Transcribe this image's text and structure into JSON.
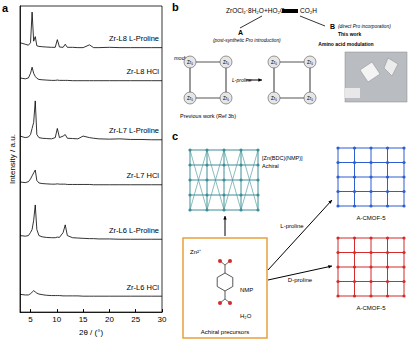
{
  "chart_data": {
    "type": "line",
    "panel": "a",
    "x_label": "2θ / (°)",
    "y_label": "Intensity / a.u.",
    "xlim": [
      3,
      30
    ],
    "xticks": [
      5,
      10,
      15,
      20,
      25,
      30
    ],
    "ylim": [
      0,
      100
    ],
    "yticks": [],
    "tick_labels": "x",
    "grid": false,
    "x": [
      3,
      4,
      4.6,
      5.0,
      5.3,
      5.6,
      5.9,
      6.2,
      6.6,
      7.2,
      8,
      9,
      9.7,
      10.1,
      10.5,
      11.2,
      11.6,
      12,
      13,
      14,
      15,
      16.2,
      17,
      18,
      20,
      22,
      24,
      26,
      28,
      30
    ],
    "series": [
      {
        "name": "Zr-L8 L-Proline",
        "color": "#000000",
        "values": [
          88,
          87.5,
          87.2,
          88,
          98,
          88.5,
          90,
          87,
          86.8,
          86.7,
          86.6,
          86.5,
          86.5,
          89,
          86.6,
          86.5,
          87.5,
          86.5,
          86.5,
          86.4,
          86.4,
          87.3,
          86.4,
          86.4,
          86.5,
          86.4,
          86.4,
          86.4,
          86.4,
          86.4
        ]
      },
      {
        "name": "Zr-L8 HCl",
        "color": "#000000",
        "values": [
          76.5,
          76.2,
          76.5,
          78,
          80,
          78,
          77,
          76.4,
          76,
          75.9,
          75.8,
          75.7,
          75.7,
          75.8,
          75.7,
          75.7,
          75.7,
          75.7,
          75.6,
          75.6,
          75.6,
          75.6,
          75.6,
          75.6,
          75.6,
          75.6,
          75.6,
          75.6,
          75.6,
          75.6
        ]
      },
      {
        "name": "Zr-L7 L-Proline",
        "color": "#000000",
        "values": [
          57.5,
          57,
          57.2,
          58,
          60,
          62,
          69,
          58,
          57,
          56.8,
          56.7,
          56.6,
          57,
          60,
          57,
          57.5,
          58,
          56.8,
          56.7,
          56.6,
          57.5,
          57,
          56.8,
          56.6,
          56.5,
          56.6,
          56.4,
          56.4,
          56.3,
          56.3
        ]
      },
      {
        "name": "Zr-L7 HCl",
        "color": "#000000",
        "values": [
          42.5,
          42.3,
          42.6,
          43.5,
          44.5,
          45.5,
          46.4,
          43,
          42.2,
          42,
          41.9,
          41.8,
          41.8,
          41.9,
          41.8,
          41.8,
          41.8,
          41.7,
          41.7,
          41.7,
          41.7,
          41.7,
          41.6,
          41.6,
          41.6,
          41.6,
          41.6,
          41.6,
          41.6,
          41.6
        ]
      },
      {
        "name": "Zr-L6 L-Proline",
        "color": "#000000",
        "values": [
          25,
          24.8,
          25,
          26,
          27,
          30,
          35,
          27,
          25,
          24.6,
          24.4,
          24.3,
          24.3,
          24.5,
          24.4,
          26,
          28.5,
          25,
          24.3,
          24.2,
          24.1,
          24,
          24,
          23.9,
          23.9,
          23.8,
          23.8,
          23.8,
          23.8,
          23.8
        ]
      },
      {
        "name": "Zr-L6 HCl",
        "color": "#000000",
        "values": [
          5.8,
          5.6,
          5.6,
          6,
          6.5,
          7,
          6.6,
          6.2,
          5.9,
          5.7,
          5.5,
          5.4,
          5.4,
          5.4,
          5.4,
          5.3,
          5.3,
          5.3,
          5.3,
          5.3,
          5.2,
          5.2,
          5.2,
          5.2,
          5.2,
          5.2,
          5.2,
          5.2,
          5.2,
          5.2
        ]
      }
    ]
  },
  "panel_b": {
    "label": "b",
    "reagents": "ZrOCl₂·8H₂O+HO₂C",
    "acid_end": "CO₂H",
    "route_a": {
      "letter": "A",
      "text": "(post-synthetic Pro introduction)"
    },
    "route_b": {
      "letter": "B",
      "text": "(direct Pro incorporation)"
    },
    "this_work": "This work",
    "modulator": "modul",
    "proline": "L-proline",
    "node": "Zr₆",
    "previous": "Previous work (Ref 3b)",
    "modulation": "Amino acid modulation"
  },
  "panel_c": {
    "label": "c",
    "framework": "[Zn(BDC)(NMP)]",
    "framework_note": "Achiral",
    "l_route": "L-proline",
    "d_route": "D-proline",
    "l_product": "A-CMOF-5",
    "d_product": "A-CMOF-5",
    "precursors": "Achiral precursors",
    "metal": "Zn²⁺",
    "solvent": "NMP",
    "water": "H₂O"
  }
}
